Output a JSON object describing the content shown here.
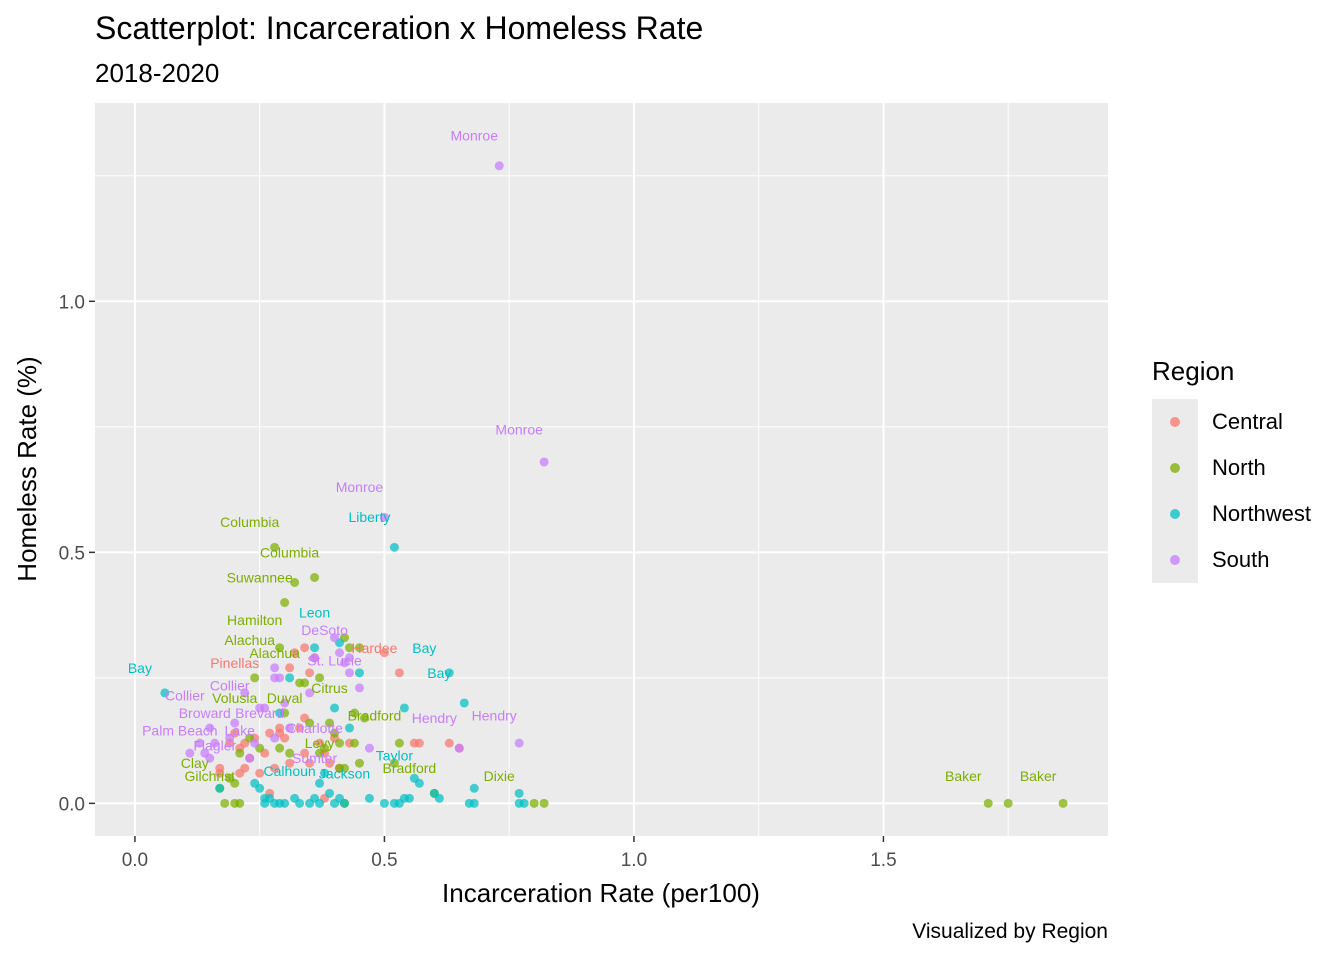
{
  "title": "Scatterplot: Incarceration x Homeless Rate",
  "subtitle": "2018-2020",
  "caption": "Visualized by Region",
  "legend": {
    "title": "Region",
    "items": [
      {
        "label": "Central",
        "color": "#F8766D"
      },
      {
        "label": "North",
        "color": "#7CAE00"
      },
      {
        "label": "Northwest",
        "color": "#00BFC4"
      },
      {
        "label": "South",
        "color": "#C77CFF"
      }
    ]
  },
  "chart_data": {
    "type": "scatter",
    "xlabel": "Incarceration Rate (per100)",
    "ylabel": "Homeless Rate (%)",
    "xlim": [
      -0.08,
      1.95
    ],
    "ylim": [
      -0.065,
      1.395
    ],
    "x_ticks": [
      {
        "value": 0.0,
        "label": "0.0"
      },
      {
        "value": 0.5,
        "label": "0.5"
      },
      {
        "value": 1.0,
        "label": "1.0"
      },
      {
        "value": 1.5,
        "label": "1.5"
      }
    ],
    "y_ticks": [
      {
        "value": 0.0,
        "label": "0.0"
      },
      {
        "value": 0.5,
        "label": "0.5"
      },
      {
        "value": 1.0,
        "label": "1.0"
      }
    ],
    "grid": true,
    "legend_position": "right",
    "series": [
      {
        "name": "Central",
        "points": [
          [
            0.17,
            0.07
          ],
          [
            0.17,
            0.06
          ],
          [
            0.19,
            0.12
          ],
          [
            0.2,
            0.14
          ],
          [
            0.21,
            0.11
          ],
          [
            0.21,
            0.06
          ],
          [
            0.22,
            0.07
          ],
          [
            0.22,
            0.12
          ],
          [
            0.23,
            0.09
          ],
          [
            0.24,
            0.13
          ],
          [
            0.25,
            0.06
          ],
          [
            0.26,
            0.1
          ],
          [
            0.27,
            0.14
          ],
          [
            0.27,
            0.02
          ],
          [
            0.28,
            0.07
          ],
          [
            0.29,
            0.14
          ],
          [
            0.29,
            0.15
          ],
          [
            0.3,
            0.13
          ],
          [
            0.31,
            0.27
          ],
          [
            0.31,
            0.08
          ],
          [
            0.32,
            0.3
          ],
          [
            0.33,
            0.15
          ],
          [
            0.34,
            0.31
          ],
          [
            0.34,
            0.17
          ],
          [
            0.34,
            0.1
          ],
          [
            0.35,
            0.08
          ],
          [
            0.35,
            0.26
          ],
          [
            0.36,
            0.29
          ],
          [
            0.37,
            0.12
          ],
          [
            0.38,
            0.1
          ],
          [
            0.38,
            0.01
          ],
          [
            0.39,
            0.08
          ],
          [
            0.4,
            0.13
          ],
          [
            0.41,
            0.07
          ],
          [
            0.43,
            0.12
          ],
          [
            0.5,
            0.3
          ],
          [
            0.53,
            0.26
          ],
          [
            0.56,
            0.12
          ],
          [
            0.57,
            0.12
          ],
          [
            0.63,
            0.12
          ],
          [
            0.65,
            0.11
          ]
        ],
        "labels": [
          {
            "x": 0.2,
            "y": 0.27,
            "text": "Pinellas"
          },
          {
            "x": 0.48,
            "y": 0.3,
            "text": "Hardee"
          }
        ]
      },
      {
        "name": "North",
        "points": [
          [
            0.18,
            0.0
          ],
          [
            0.2,
            0.0
          ],
          [
            0.21,
            0.0
          ],
          [
            0.2,
            0.04
          ],
          [
            0.17,
            0.03
          ],
          [
            0.19,
            0.05
          ],
          [
            0.21,
            0.1
          ],
          [
            0.23,
            0.13
          ],
          [
            0.25,
            0.11
          ],
          [
            0.24,
            0.25
          ],
          [
            0.28,
            0.51
          ],
          [
            0.29,
            0.31
          ],
          [
            0.29,
            0.11
          ],
          [
            0.3,
            0.4
          ],
          [
            0.3,
            0.18
          ],
          [
            0.31,
            0.1
          ],
          [
            0.32,
            0.44
          ],
          [
            0.33,
            0.24
          ],
          [
            0.34,
            0.24
          ],
          [
            0.35,
            0.16
          ],
          [
            0.36,
            0.45
          ],
          [
            0.37,
            0.25
          ],
          [
            0.37,
            0.1
          ],
          [
            0.38,
            0.11
          ],
          [
            0.39,
            0.16
          ],
          [
            0.4,
            0.14
          ],
          [
            0.41,
            0.12
          ],
          [
            0.41,
            0.07
          ],
          [
            0.42,
            0.33
          ],
          [
            0.42,
            0.07
          ],
          [
            0.42,
            0.0
          ],
          [
            0.43,
            0.31
          ],
          [
            0.44,
            0.18
          ],
          [
            0.44,
            0.12
          ],
          [
            0.45,
            0.31
          ],
          [
            0.45,
            0.08
          ],
          [
            0.46,
            0.17
          ],
          [
            0.52,
            0.08
          ],
          [
            0.53,
            0.12
          ],
          [
            0.6,
            0.02
          ],
          [
            0.8,
            0.0
          ],
          [
            0.82,
            0.0
          ],
          [
            1.71,
            0.0
          ],
          [
            1.75,
            0.0
          ],
          [
            1.86,
            0.0
          ]
        ],
        "labels": [
          {
            "x": 0.23,
            "y": 0.55,
            "text": "Columbia"
          },
          {
            "x": 0.31,
            "y": 0.49,
            "text": "Columbia"
          },
          {
            "x": 0.25,
            "y": 0.44,
            "text": "Suwannee"
          },
          {
            "x": 0.24,
            "y": 0.355,
            "text": "Hamilton"
          },
          {
            "x": 0.23,
            "y": 0.315,
            "text": "Alachua"
          },
          {
            "x": 0.28,
            "y": 0.29,
            "text": "Alachua"
          },
          {
            "x": 0.39,
            "y": 0.22,
            "text": "Citrus"
          },
          {
            "x": 0.2,
            "y": 0.2,
            "text": "Volusia"
          },
          {
            "x": 0.3,
            "y": 0.2,
            "text": "Duval"
          },
          {
            "x": 0.48,
            "y": 0.165,
            "text": "Bradford"
          },
          {
            "x": 0.37,
            "y": 0.11,
            "text": "Levy"
          },
          {
            "x": 0.12,
            "y": 0.07,
            "text": "Clay"
          },
          {
            "x": 0.15,
            "y": 0.045,
            "text": "Gilchrist"
          },
          {
            "x": 0.55,
            "y": 0.06,
            "text": "Bradford"
          },
          {
            "x": 0.73,
            "y": 0.045,
            "text": "Dixie"
          },
          {
            "x": 1.66,
            "y": 0.045,
            "text": "Baker"
          },
          {
            "x": 1.81,
            "y": 0.045,
            "text": "Baker"
          }
        ]
      },
      {
        "name": "Northwest",
        "points": [
          [
            0.06,
            0.22
          ],
          [
            0.17,
            0.03
          ],
          [
            0.24,
            0.04
          ],
          [
            0.25,
            0.03
          ],
          [
            0.26,
            0.01
          ],
          [
            0.26,
            0.0
          ],
          [
            0.27,
            0.01
          ],
          [
            0.28,
            0.0
          ],
          [
            0.29,
            0.18
          ],
          [
            0.29,
            0.0
          ],
          [
            0.3,
            0.0
          ],
          [
            0.31,
            0.25
          ],
          [
            0.32,
            0.01
          ],
          [
            0.33,
            0.0
          ],
          [
            0.35,
            0.0
          ],
          [
            0.36,
            0.31
          ],
          [
            0.36,
            0.01
          ],
          [
            0.37,
            0.04
          ],
          [
            0.37,
            0.0
          ],
          [
            0.38,
            0.06
          ],
          [
            0.39,
            0.02
          ],
          [
            0.4,
            0.19
          ],
          [
            0.4,
            0.0
          ],
          [
            0.41,
            0.32
          ],
          [
            0.41,
            0.01
          ],
          [
            0.42,
            0.0
          ],
          [
            0.43,
            0.15
          ],
          [
            0.45,
            0.26
          ],
          [
            0.47,
            0.01
          ],
          [
            0.5,
            0.0
          ],
          [
            0.52,
            0.51
          ],
          [
            0.52,
            0.0
          ],
          [
            0.53,
            0.0
          ],
          [
            0.54,
            0.19
          ],
          [
            0.54,
            0.01
          ],
          [
            0.55,
            0.01
          ],
          [
            0.56,
            0.05
          ],
          [
            0.57,
            0.04
          ],
          [
            0.6,
            0.02
          ],
          [
            0.61,
            0.01
          ],
          [
            0.63,
            0.26
          ],
          [
            0.66,
            0.2
          ],
          [
            0.67,
            0.0
          ],
          [
            0.68,
            0.03
          ],
          [
            0.68,
            0.0
          ],
          [
            0.77,
            0.02
          ],
          [
            0.77,
            0.0
          ],
          [
            0.78,
            0.0
          ]
        ],
        "labels": [
          {
            "x": 0.47,
            "y": 0.56,
            "text": "Liberty"
          },
          {
            "x": 0.36,
            "y": 0.37,
            "text": "Leon"
          },
          {
            "x": 0.58,
            "y": 0.3,
            "text": "Bay"
          },
          {
            "x": 0.61,
            "y": 0.25,
            "text": "Bay"
          },
          {
            "x": 0.01,
            "y": 0.26,
            "text": "Bay"
          },
          {
            "x": 0.52,
            "y": 0.085,
            "text": "Taylor"
          },
          {
            "x": 0.31,
            "y": 0.055,
            "text": "Calhoun"
          },
          {
            "x": 0.42,
            "y": 0.05,
            "text": "Jackson"
          }
        ]
      },
      {
        "name": "South",
        "points": [
          [
            0.11,
            0.1
          ],
          [
            0.13,
            0.12
          ],
          [
            0.14,
            0.1
          ],
          [
            0.15,
            0.09
          ],
          [
            0.15,
            0.15
          ],
          [
            0.16,
            0.12
          ],
          [
            0.19,
            0.13
          ],
          [
            0.2,
            0.16
          ],
          [
            0.22,
            0.22
          ],
          [
            0.23,
            0.09
          ],
          [
            0.24,
            0.12
          ],
          [
            0.25,
            0.19
          ],
          [
            0.26,
            0.19
          ],
          [
            0.28,
            0.27
          ],
          [
            0.28,
            0.25
          ],
          [
            0.28,
            0.13
          ],
          [
            0.29,
            0.25
          ],
          [
            0.3,
            0.2
          ],
          [
            0.31,
            0.15
          ],
          [
            0.35,
            0.22
          ],
          [
            0.36,
            0.29
          ],
          [
            0.4,
            0.33
          ],
          [
            0.41,
            0.3
          ],
          [
            0.42,
            0.28
          ],
          [
            0.43,
            0.29
          ],
          [
            0.43,
            0.26
          ],
          [
            0.45,
            0.23
          ],
          [
            0.47,
            0.11
          ],
          [
            0.5,
            0.57
          ],
          [
            0.65,
            0.11
          ],
          [
            0.73,
            1.27
          ],
          [
            0.77,
            0.12
          ],
          [
            0.82,
            0.68
          ]
        ],
        "labels": [
          {
            "x": 0.68,
            "y": 1.32,
            "text": "Monroe"
          },
          {
            "x": 0.77,
            "y": 0.735,
            "text": "Monroe"
          },
          {
            "x": 0.45,
            "y": 0.62,
            "text": "Monroe"
          },
          {
            "x": 0.38,
            "y": 0.335,
            "text": "DeSoto"
          },
          {
            "x": 0.4,
            "y": 0.275,
            "text": "St. Lucie"
          },
          {
            "x": 0.19,
            "y": 0.225,
            "text": "Collier"
          },
          {
            "x": 0.1,
            "y": 0.205,
            "text": "Collier"
          },
          {
            "x": 0.14,
            "y": 0.17,
            "text": "Broward"
          },
          {
            "x": 0.25,
            "y": 0.17,
            "text": "Brevard"
          },
          {
            "x": 0.6,
            "y": 0.16,
            "text": "Hendry"
          },
          {
            "x": 0.72,
            "y": 0.165,
            "text": "Hendry"
          },
          {
            "x": 0.09,
            "y": 0.135,
            "text": "Palm Beach"
          },
          {
            "x": 0.21,
            "y": 0.135,
            "text": "Lake"
          },
          {
            "x": 0.36,
            "y": 0.14,
            "text": "Charlotte"
          },
          {
            "x": 0.16,
            "y": 0.105,
            "text": "Flagler"
          },
          {
            "x": 0.36,
            "y": 0.08,
            "text": "Sumter"
          }
        ]
      }
    ]
  }
}
